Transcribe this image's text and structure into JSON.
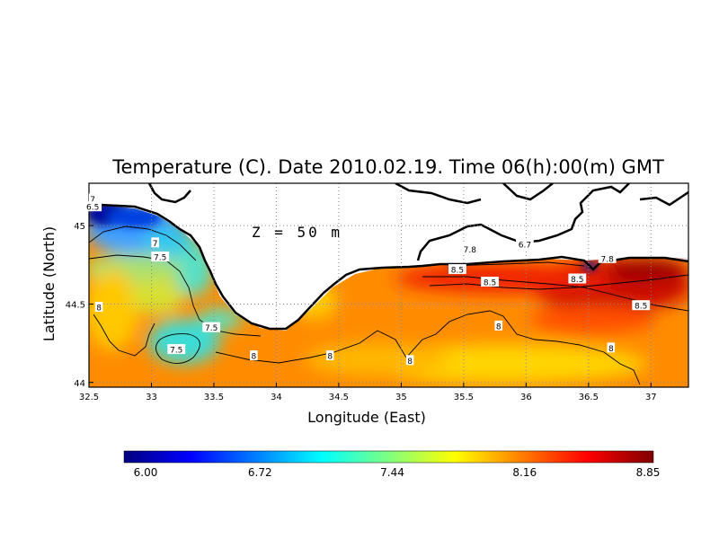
{
  "chart_data": {
    "type": "heatmap",
    "title": "Temperature (C). Date 2010.02.19. Time 06(h):00(m) GMT",
    "xlabel": "Longitude (East)",
    "ylabel": "Latitude (North)",
    "annotation": "Z = 50 m",
    "xlim": [
      32.5,
      37.3
    ],
    "ylim": [
      43.97,
      45.27
    ],
    "x_ticks": [
      {
        "value": 32.5,
        "label": "32.5"
      },
      {
        "value": 33,
        "label": "33"
      },
      {
        "value": 33.5,
        "label": "33.5"
      },
      {
        "value": 34,
        "label": "34"
      },
      {
        "value": 34.5,
        "label": "34.5"
      },
      {
        "value": 35,
        "label": "35"
      },
      {
        "value": 35.5,
        "label": "35.5"
      },
      {
        "value": 36,
        "label": "36"
      },
      {
        "value": 36.5,
        "label": "36.5"
      },
      {
        "value": 37,
        "label": "37"
      }
    ],
    "y_ticks": [
      {
        "value": 44,
        "label": "44"
      },
      {
        "value": 44.5,
        "label": "44.5"
      },
      {
        "value": 45,
        "label": "45"
      }
    ],
    "grid": true,
    "colorbar": {
      "min": 6.0,
      "max": 8.85,
      "tick_labels": [
        "6.00",
        "6.72",
        "7.44",
        "8.16",
        "8.85"
      ],
      "colors": [
        "#00007f",
        "#0000ff",
        "#007fff",
        "#00ffff",
        "#7fff7f",
        "#ffff00",
        "#ff7f00",
        "#ff0000",
        "#7f0000"
      ]
    },
    "contour_labels": [
      {
        "text": "7",
        "x": 32.53,
        "y": 45.17
      },
      {
        "text": "6.5",
        "x": 32.53,
        "y": 45.12
      },
      {
        "text": "7",
        "x": 33.03,
        "y": 44.89
      },
      {
        "text": "7.5",
        "x": 33.07,
        "y": 44.8
      },
      {
        "text": "8",
        "x": 32.58,
        "y": 44.48
      },
      {
        "text": "7.5",
        "x": 33.2,
        "y": 44.21
      },
      {
        "text": "7.5",
        "x": 33.48,
        "y": 44.35
      },
      {
        "text": "8",
        "x": 33.82,
        "y": 44.17
      },
      {
        "text": "8",
        "x": 34.43,
        "y": 44.17
      },
      {
        "text": "8",
        "x": 35.07,
        "y": 44.14
      },
      {
        "text": "7.8",
        "x": 35.55,
        "y": 44.85
      },
      {
        "text": "6.7",
        "x": 35.99,
        "y": 44.88
      },
      {
        "text": "8.5",
        "x": 35.45,
        "y": 44.72
      },
      {
        "text": "8.5",
        "x": 35.71,
        "y": 44.64
      },
      {
        "text": "8.5",
        "x": 36.41,
        "y": 44.66
      },
      {
        "text": "7.8",
        "x": 36.65,
        "y": 44.79
      },
      {
        "text": "8",
        "x": 35.78,
        "y": 44.36
      },
      {
        "text": "8",
        "x": 36.68,
        "y": 44.22
      },
      {
        "text": "8.5",
        "x": 36.92,
        "y": 44.49
      }
    ]
  }
}
